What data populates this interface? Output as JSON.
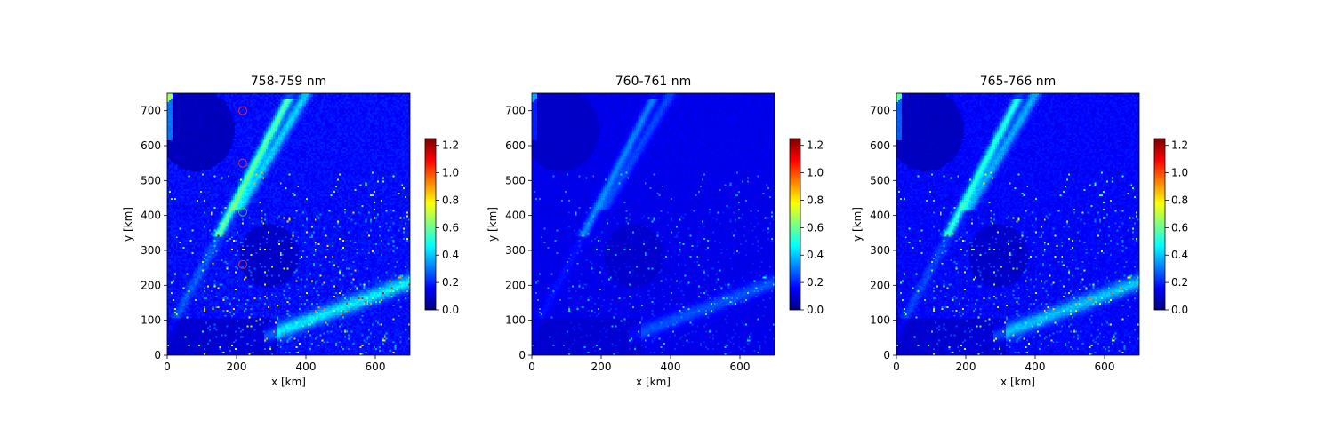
{
  "chart_data": [
    {
      "type": "heatmap",
      "title": "758-759 nm",
      "xlabel": "x [km]",
      "ylabel": "y [km]",
      "xlim": [
        0,
        700
      ],
      "ylim": [
        0,
        750
      ],
      "xticks": [
        0,
        200,
        400,
        600
      ],
      "yticks": [
        0,
        100,
        200,
        300,
        400,
        500,
        600,
        700
      ],
      "colorbar": {
        "colormap": "jet",
        "range": [
          0,
          1.25
        ],
        "ticks": [
          "0.0",
          "0.2",
          "0.4",
          "0.6",
          "0.8",
          "1.0",
          "1.2"
        ]
      },
      "intensity": 1.0,
      "markers": [
        {
          "x": 218,
          "y": 700,
          "color": "#e0303a"
        },
        {
          "x": 218,
          "y": 550,
          "color": "#e0303a"
        },
        {
          "x": 218,
          "y": 410,
          "color": "#40c060"
        },
        {
          "x": 218,
          "y": 260,
          "color": "#e0303a"
        }
      ]
    },
    {
      "type": "heatmap",
      "title": "760-761 nm",
      "xlabel": "x [km]",
      "ylabel": "y [km]",
      "xlim": [
        0,
        700
      ],
      "ylim": [
        0,
        750
      ],
      "xticks": [
        0,
        200,
        400,
        600
      ],
      "yticks": [
        0,
        100,
        200,
        300,
        400,
        500,
        600,
        700
      ],
      "colorbar": {
        "colormap": "jet",
        "range": [
          0,
          1.25
        ],
        "ticks": [
          "0.0",
          "0.2",
          "0.4",
          "0.6",
          "0.8",
          "1.0",
          "1.2"
        ]
      },
      "intensity": 0.45,
      "markers": []
    },
    {
      "type": "heatmap",
      "title": "765-766 nm",
      "xlabel": "x [km]",
      "ylabel": "y [km]",
      "xlim": [
        0,
        700
      ],
      "ylim": [
        0,
        750
      ],
      "xticks": [
        0,
        200,
        400,
        600
      ],
      "yticks": [
        0,
        100,
        200,
        300,
        400,
        500,
        600,
        700
      ],
      "colorbar": {
        "colormap": "jet",
        "range": [
          0,
          1.25
        ],
        "ticks": [
          "0.0",
          "0.2",
          "0.4",
          "0.6",
          "0.8",
          "1.0",
          "1.2"
        ]
      },
      "intensity": 0.85,
      "markers": []
    }
  ]
}
